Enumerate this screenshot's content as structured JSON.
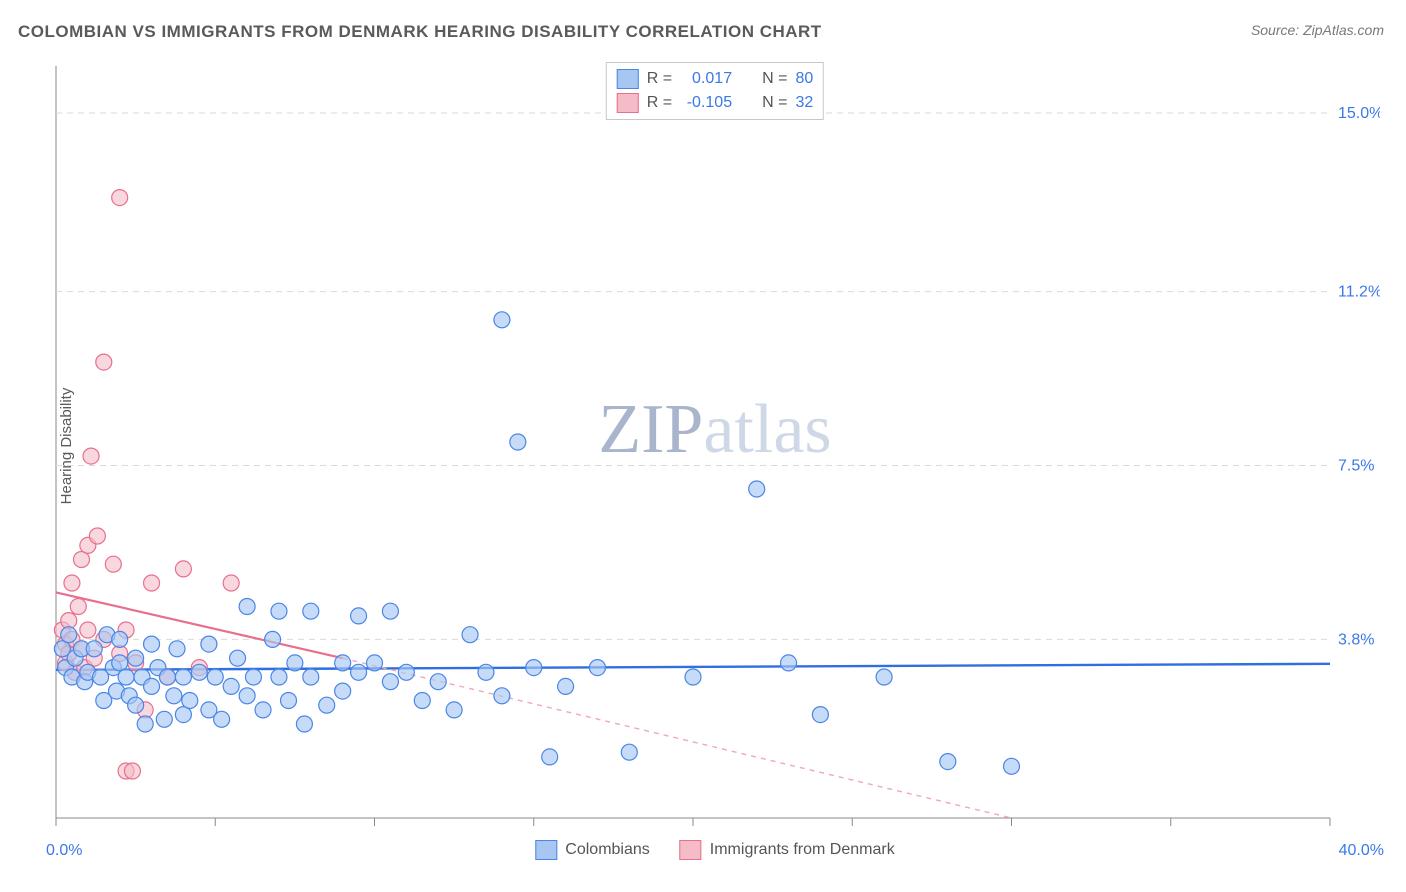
{
  "title": "COLOMBIAN VS IMMIGRANTS FROM DENMARK HEARING DISABILITY CORRELATION CHART",
  "source": "Source: ZipAtlas.com",
  "y_axis_label": "Hearing Disability",
  "watermark": {
    "zip": "ZIP",
    "atlas": "atlas",
    "zip_color": "#a9b5cc",
    "atlas_color": "#cfd8e6"
  },
  "chart": {
    "type": "scatter",
    "plot_background": "#ffffff",
    "xlim": [
      0.0,
      40.0
    ],
    "ylim": [
      0.0,
      16.0
    ],
    "x_axis": {
      "label_min": "0.0%",
      "label_max": "40.0%",
      "label_color": "#3b78e7",
      "tick_positions_pct": [
        0,
        12.5,
        25,
        37.5,
        50,
        62.5,
        75,
        87.5,
        100
      ],
      "tick_color": "#888888"
    },
    "y_axis": {
      "gridlines": [
        {
          "value": 3.8,
          "label": "3.8%"
        },
        {
          "value": 7.5,
          "label": "7.5%"
        },
        {
          "value": 11.2,
          "label": "11.2%"
        },
        {
          "value": 15.0,
          "label": "15.0%"
        }
      ],
      "grid_color": "#d9d9d9",
      "grid_dash": "6 5",
      "label_color": "#3b78e7"
    },
    "series": [
      {
        "name": "Colombians",
        "marker": {
          "shape": "circle",
          "radius": 8,
          "fill": "#a7c7f2",
          "fill_opacity": 0.65,
          "stroke": "#4a86e8",
          "stroke_width": 1.2
        },
        "trend": {
          "type": "line",
          "color": "#2f6fe0",
          "width": 2.4,
          "y_start": 3.15,
          "y_end": 3.28,
          "dash": "none"
        },
        "stats": {
          "R_label": "R = ",
          "R_value": "0.017",
          "N_label": "N = ",
          "N_value": "80"
        },
        "points": [
          [
            0.2,
            3.6
          ],
          [
            0.3,
            3.2
          ],
          [
            0.4,
            3.9
          ],
          [
            0.5,
            3.0
          ],
          [
            0.6,
            3.4
          ],
          [
            0.8,
            3.6
          ],
          [
            0.9,
            2.9
          ],
          [
            1.0,
            3.1
          ],
          [
            1.2,
            3.6
          ],
          [
            1.4,
            3.0
          ],
          [
            1.5,
            2.5
          ],
          [
            1.6,
            3.9
          ],
          [
            1.8,
            3.2
          ],
          [
            1.9,
            2.7
          ],
          [
            2.0,
            3.3
          ],
          [
            2.0,
            3.8
          ],
          [
            2.2,
            3.0
          ],
          [
            2.3,
            2.6
          ],
          [
            2.5,
            3.4
          ],
          [
            2.5,
            2.4
          ],
          [
            2.7,
            3.0
          ],
          [
            2.8,
            2.0
          ],
          [
            3.0,
            3.7
          ],
          [
            3.0,
            2.8
          ],
          [
            3.2,
            3.2
          ],
          [
            3.4,
            2.1
          ],
          [
            3.5,
            3.0
          ],
          [
            3.7,
            2.6
          ],
          [
            3.8,
            3.6
          ],
          [
            4.0,
            3.0
          ],
          [
            4.0,
            2.2
          ],
          [
            4.2,
            2.5
          ],
          [
            4.5,
            3.1
          ],
          [
            4.8,
            3.7
          ],
          [
            4.8,
            2.3
          ],
          [
            5.0,
            3.0
          ],
          [
            5.2,
            2.1
          ],
          [
            5.5,
            2.8
          ],
          [
            5.7,
            3.4
          ],
          [
            6.0,
            2.6
          ],
          [
            6.0,
            4.5
          ],
          [
            6.2,
            3.0
          ],
          [
            6.5,
            2.3
          ],
          [
            6.8,
            3.8
          ],
          [
            7.0,
            4.4
          ],
          [
            7.0,
            3.0
          ],
          [
            7.3,
            2.5
          ],
          [
            7.5,
            3.3
          ],
          [
            7.8,
            2.0
          ],
          [
            8.0,
            4.4
          ],
          [
            8.0,
            3.0
          ],
          [
            8.5,
            2.4
          ],
          [
            9.0,
            3.3
          ],
          [
            9.0,
            2.7
          ],
          [
            9.5,
            3.1
          ],
          [
            9.5,
            4.3
          ],
          [
            10.0,
            3.3
          ],
          [
            10.5,
            2.9
          ],
          [
            10.5,
            4.4
          ],
          [
            11.0,
            3.1
          ],
          [
            11.5,
            2.5
          ],
          [
            12.0,
            2.9
          ],
          [
            12.5,
            2.3
          ],
          [
            13.0,
            3.9
          ],
          [
            13.5,
            3.1
          ],
          [
            14.0,
            2.6
          ],
          [
            14.5,
            8.0
          ],
          [
            15.0,
            3.2
          ],
          [
            15.5,
            1.3
          ],
          [
            16.0,
            2.8
          ],
          [
            17.0,
            3.2
          ],
          [
            18.0,
            1.4
          ],
          [
            14.0,
            10.6
          ],
          [
            20.0,
            3.0
          ],
          [
            22.0,
            7.0
          ],
          [
            23.0,
            3.3
          ],
          [
            24.0,
            2.2
          ],
          [
            26.0,
            3.0
          ],
          [
            28.0,
            1.2
          ],
          [
            30.0,
            1.1
          ]
        ]
      },
      {
        "name": "Immigrants from Denmark",
        "marker": {
          "shape": "circle",
          "radius": 8,
          "fill": "#f5bcc8",
          "fill_opacity": 0.6,
          "stroke": "#e86f8d",
          "stroke_width": 1.2
        },
        "trend": {
          "type": "line",
          "color": "#e86f8d",
          "width": 2.2,
          "solid_until_x": 9.0,
          "y_start": 4.8,
          "y_end_solid": 3.4,
          "dash_color": "#f0a8b8",
          "dash": "5 5",
          "y_end_dash": 0.0,
          "x_dash_end": 30.0
        },
        "stats": {
          "R_label": "R = ",
          "R_value": "-0.105",
          "N_label": "N = ",
          "N_value": "32"
        },
        "points": [
          [
            0.2,
            4.0
          ],
          [
            0.3,
            3.7
          ],
          [
            0.3,
            3.3
          ],
          [
            0.4,
            4.2
          ],
          [
            0.4,
            3.5
          ],
          [
            0.5,
            3.8
          ],
          [
            0.5,
            5.0
          ],
          [
            0.6,
            3.1
          ],
          [
            0.7,
            4.5
          ],
          [
            0.8,
            3.6
          ],
          [
            0.8,
            5.5
          ],
          [
            0.9,
            3.2
          ],
          [
            1.0,
            5.8
          ],
          [
            1.0,
            4.0
          ],
          [
            1.1,
            7.7
          ],
          [
            1.2,
            3.4
          ],
          [
            1.3,
            6.0
          ],
          [
            1.5,
            3.8
          ],
          [
            1.5,
            9.7
          ],
          [
            1.8,
            5.4
          ],
          [
            2.0,
            3.5
          ],
          [
            2.0,
            13.2
          ],
          [
            2.2,
            4.0
          ],
          [
            2.2,
            1.0
          ],
          [
            2.4,
            1.0
          ],
          [
            2.5,
            3.3
          ],
          [
            2.8,
            2.3
          ],
          [
            3.0,
            5.0
          ],
          [
            3.5,
            3.0
          ],
          [
            4.0,
            5.3
          ],
          [
            4.5,
            3.2
          ],
          [
            5.5,
            5.0
          ]
        ]
      }
    ],
    "legend_bottom": [
      {
        "label": "Colombians",
        "fill": "#a7c7f2",
        "stroke": "#4a86e8"
      },
      {
        "label": "Immigrants from Denmark",
        "fill": "#f5bcc8",
        "stroke": "#e86f8d"
      }
    ]
  }
}
